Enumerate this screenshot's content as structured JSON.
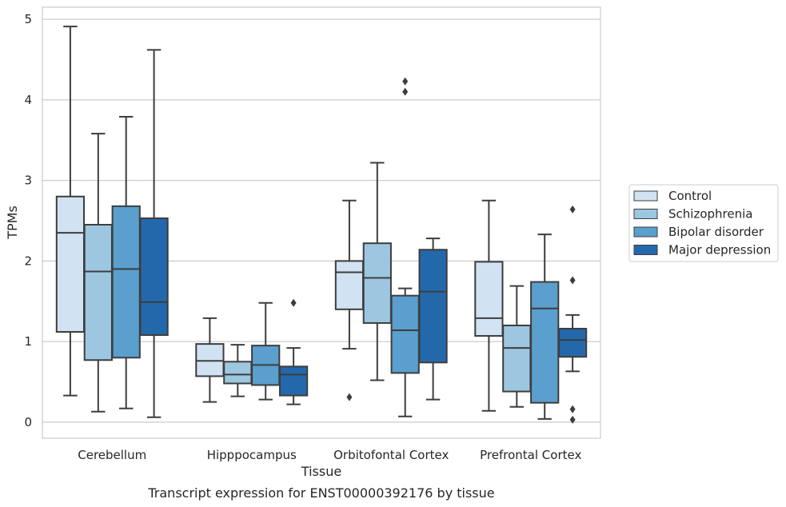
{
  "chart_data": {
    "type": "box",
    "caption": "Transcript expression for ENST00000392176 by tissue",
    "xlabel": "Tissue",
    "ylabel": "TPMs",
    "ylim": [
      -0.2,
      5.15
    ],
    "yticks": [
      0,
      1,
      2,
      3,
      4,
      5
    ],
    "grid": "horizontal",
    "legend_position": "right",
    "categories": [
      "Cerebellum",
      "Hipppocampus",
      "Orbitofontal Cortex",
      "Prefrontal Cortex"
    ],
    "series": [
      {
        "name": "Control",
        "color": "#d1e2f2",
        "boxes": [
          {
            "whisker_low": 0.33,
            "q1": 1.12,
            "median": 2.35,
            "q3": 2.8,
            "whisker_high": 4.91,
            "outliers": []
          },
          {
            "whisker_low": 0.25,
            "q1": 0.57,
            "median": 0.76,
            "q3": 0.97,
            "whisker_high": 1.29,
            "outliers": []
          },
          {
            "whisker_low": 0.91,
            "q1": 1.4,
            "median": 1.86,
            "q3": 2.0,
            "whisker_high": 2.75,
            "outliers": [
              0.31
            ]
          },
          {
            "whisker_low": 0.14,
            "q1": 1.07,
            "median": 1.29,
            "q3": 1.99,
            "whisker_high": 2.75,
            "outliers": []
          }
        ]
      },
      {
        "name": "Schizophrenia",
        "color": "#9dc7e0",
        "boxes": [
          {
            "whisker_low": 0.13,
            "q1": 0.77,
            "median": 1.87,
            "q3": 2.45,
            "whisker_high": 3.58,
            "outliers": []
          },
          {
            "whisker_low": 0.32,
            "q1": 0.48,
            "median": 0.59,
            "q3": 0.75,
            "whisker_high": 0.96,
            "outliers": []
          },
          {
            "whisker_low": 0.52,
            "q1": 1.23,
            "median": 1.79,
            "q3": 2.22,
            "whisker_high": 3.22,
            "outliers": []
          },
          {
            "whisker_low": 0.19,
            "q1": 0.38,
            "median": 0.92,
            "q3": 1.2,
            "whisker_high": 1.69,
            "outliers": []
          }
        ]
      },
      {
        "name": "Bipolar disorder",
        "color": "#5a9fcd",
        "boxes": [
          {
            "whisker_low": 0.17,
            "q1": 0.8,
            "median": 1.9,
            "q3": 2.68,
            "whisker_high": 3.79,
            "outliers": []
          },
          {
            "whisker_low": 0.28,
            "q1": 0.46,
            "median": 0.71,
            "q3": 0.95,
            "whisker_high": 1.48,
            "outliers": []
          },
          {
            "whisker_low": 0.07,
            "q1": 0.61,
            "median": 1.14,
            "q3": 1.57,
            "whisker_high": 1.66,
            "outliers": [
              4.1,
              4.23
            ]
          },
          {
            "whisker_low": 0.04,
            "q1": 0.24,
            "median": 1.41,
            "q3": 1.74,
            "whisker_high": 2.33,
            "outliers": []
          }
        ]
      },
      {
        "name": "Major depression",
        "color": "#2468ac",
        "boxes": [
          {
            "whisker_low": 0.06,
            "q1": 1.08,
            "median": 1.49,
            "q3": 2.53,
            "whisker_high": 4.62,
            "outliers": []
          },
          {
            "whisker_low": 0.22,
            "q1": 0.33,
            "median": 0.59,
            "q3": 0.69,
            "whisker_high": 0.92,
            "outliers": [
              1.48
            ]
          },
          {
            "whisker_low": 0.28,
            "q1": 0.74,
            "median": 1.62,
            "q3": 2.14,
            "whisker_high": 2.28,
            "outliers": []
          },
          {
            "whisker_low": 0.63,
            "q1": 0.81,
            "median": 1.02,
            "q3": 1.16,
            "whisker_high": 1.33,
            "outliers": [
              2.64,
              1.76,
              0.16,
              0.03
            ]
          }
        ]
      }
    ]
  }
}
